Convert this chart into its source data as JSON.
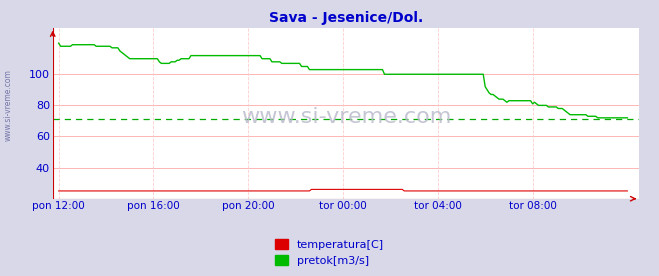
{
  "title": "Sava - Jesenice/Dol.",
  "title_color": "#0000cc",
  "bg_color": "#d8d8e8",
  "plot_bg_color": "#ffffff",
  "grid_color_h": "#ffaaaa",
  "grid_color_v": "#ffcccc",
  "dashed_line_value": 71,
  "dashed_line_color": "#00aa00",
  "tick_color": "#0000cc",
  "ylabel_ticks": [
    40,
    60,
    80,
    100
  ],
  "ytick_labels": [
    "40",
    "60",
    "80",
    "100"
  ],
  "ylim": [
    20,
    130
  ],
  "xlim_n": 289,
  "xtick_positions": [
    0,
    48,
    96,
    144,
    192,
    240
  ],
  "xtick_labels": [
    "pon 12:00",
    "pon 16:00",
    "pon 20:00",
    "tor 00:00",
    "tor 04:00",
    "tor 08:00"
  ],
  "watermark": "www.si-vreme.com",
  "watermark_color": "#bbbbcc",
  "side_label": "www.si-vreme.com",
  "side_label_color": "#7777aa",
  "legend_labels": [
    "temperatura[C]",
    "pretok[m3/s]"
  ],
  "legend_colors": [
    "#dd0000",
    "#00bb00"
  ],
  "temp_color": "#dd0000",
  "flow_color": "#00bb00",
  "arrow_color": "#cc0000",
  "flow_data": [
    120,
    118,
    118,
    118,
    118,
    118,
    118,
    119,
    119,
    119,
    119,
    119,
    119,
    119,
    119,
    119,
    119,
    119,
    119,
    118,
    118,
    118,
    118,
    118,
    118,
    118,
    118,
    117,
    117,
    117,
    117,
    115,
    114,
    113,
    112,
    111,
    110,
    110,
    110,
    110,
    110,
    110,
    110,
    110,
    110,
    110,
    110,
    110,
    110,
    110,
    110,
    108,
    107,
    107,
    107,
    107,
    107,
    108,
    108,
    108,
    109,
    109,
    110,
    110,
    110,
    110,
    110,
    112,
    112,
    112,
    112,
    112,
    112,
    112,
    112,
    112,
    112,
    112,
    112,
    112,
    112,
    112,
    112,
    112,
    112,
    112,
    112,
    112,
    112,
    112,
    112,
    112,
    112,
    112,
    112,
    112,
    112,
    112,
    112,
    112,
    112,
    112,
    112,
    110,
    110,
    110,
    110,
    110,
    108,
    108,
    108,
    108,
    108,
    107,
    107,
    107,
    107,
    107,
    107,
    107,
    107,
    107,
    107,
    105,
    105,
    105,
    105,
    103,
    103,
    103,
    103,
    103,
    103,
    103,
    103,
    103,
    103,
    103,
    103,
    103,
    103,
    103,
    103,
    103,
    103,
    103,
    103,
    103,
    103,
    103,
    103,
    103,
    103,
    103,
    103,
    103,
    103,
    103,
    103,
    103,
    103,
    103,
    103,
    103,
    103,
    100,
    100,
    100,
    100,
    100,
    100,
    100,
    100,
    100,
    100,
    100,
    100,
    100,
    100,
    100,
    100,
    100,
    100,
    100,
    100,
    100,
    100,
    100,
    100,
    100,
    100,
    100,
    100,
    100,
    100,
    100,
    100,
    100,
    100,
    100,
    100,
    100,
    100,
    100,
    100,
    100,
    100,
    100,
    100,
    100,
    100,
    100,
    100,
    100,
    100,
    100,
    92,
    90,
    88,
    87,
    87,
    86,
    85,
    84,
    84,
    84,
    83,
    82,
    83,
    83,
    83,
    83,
    83,
    83,
    83,
    83,
    83,
    83,
    83,
    83,
    81,
    82,
    81,
    80,
    80,
    80,
    80,
    80,
    79,
    79,
    79,
    79,
    79,
    78,
    78,
    78,
    77,
    76,
    75,
    74,
    74,
    74,
    74,
    74,
    74,
    74,
    74,
    74,
    73,
    73,
    73,
    73,
    73,
    72,
    72,
    72,
    72,
    72,
    72,
    72,
    72,
    72,
    72,
    72,
    72,
    72,
    72,
    72,
    72
  ],
  "temp_data": [
    25,
    25,
    25,
    25,
    25,
    25,
    25,
    25,
    25,
    25,
    25,
    25,
    25,
    25,
    25,
    25,
    25,
    25,
    25,
    25,
    25,
    25,
    25,
    25,
    25,
    25,
    25,
    25,
    25,
    25,
    25,
    25,
    25,
    25,
    25,
    25,
    25,
    25,
    25,
    25,
    25,
    25,
    25,
    25,
    25,
    25,
    25,
    25,
    25,
    25,
    25,
    25,
    25,
    25,
    25,
    25,
    25,
    25,
    25,
    25,
    25,
    25,
    25,
    25,
    25,
    25,
    25,
    25,
    25,
    25,
    25,
    25,
    25,
    25,
    25,
    25,
    25,
    25,
    25,
    25,
    25,
    25,
    25,
    25,
    25,
    25,
    25,
    25,
    25,
    25,
    25,
    25,
    25,
    25,
    25,
    25,
    25,
    25,
    25,
    25,
    25,
    25,
    25,
    25,
    25,
    25,
    25,
    25,
    25,
    25,
    25,
    25,
    25,
    25,
    25,
    25,
    25,
    25,
    25,
    25,
    25,
    25,
    25,
    25,
    25,
    25,
    25,
    25,
    26,
    26,
    26,
    26,
    26,
    26,
    26,
    26,
    26,
    26,
    26,
    26,
    26,
    26,
    26,
    26,
    26,
    26,
    26,
    26,
    26,
    26,
    26,
    26,
    26,
    26,
    26,
    26,
    26,
    26,
    26,
    26,
    26,
    26,
    26,
    26,
    26,
    26,
    26,
    26,
    26,
    26,
    26,
    26,
    26,
    26,
    26,
    25,
    25,
    25,
    25,
    25,
    25,
    25,
    25,
    25,
    25,
    25,
    25,
    25,
    25,
    25,
    25,
    25,
    25,
    25,
    25,
    25,
    25,
    25,
    25,
    25,
    25,
    25,
    25,
    25,
    25,
    25,
    25,
    25,
    25,
    25,
    25,
    25,
    25,
    25,
    25,
    25,
    25,
    25,
    25,
    25,
    25,
    25,
    25,
    25,
    25,
    25,
    25,
    25,
    25,
    25,
    25,
    25,
    25,
    25,
    25,
    25,
    25,
    25,
    25,
    25,
    25,
    25,
    25,
    25,
    25,
    25,
    25,
    25,
    25,
    25,
    25,
    25,
    25,
    25,
    25,
    25,
    25,
    25,
    25,
    25,
    25,
    25,
    25,
    25,
    25,
    25,
    25,
    25,
    25,
    25,
    25,
    25,
    25,
    25,
    25,
    25,
    25,
    25,
    25,
    25,
    25,
    25,
    25,
    25,
    25,
    25,
    25,
    25,
    25
  ]
}
